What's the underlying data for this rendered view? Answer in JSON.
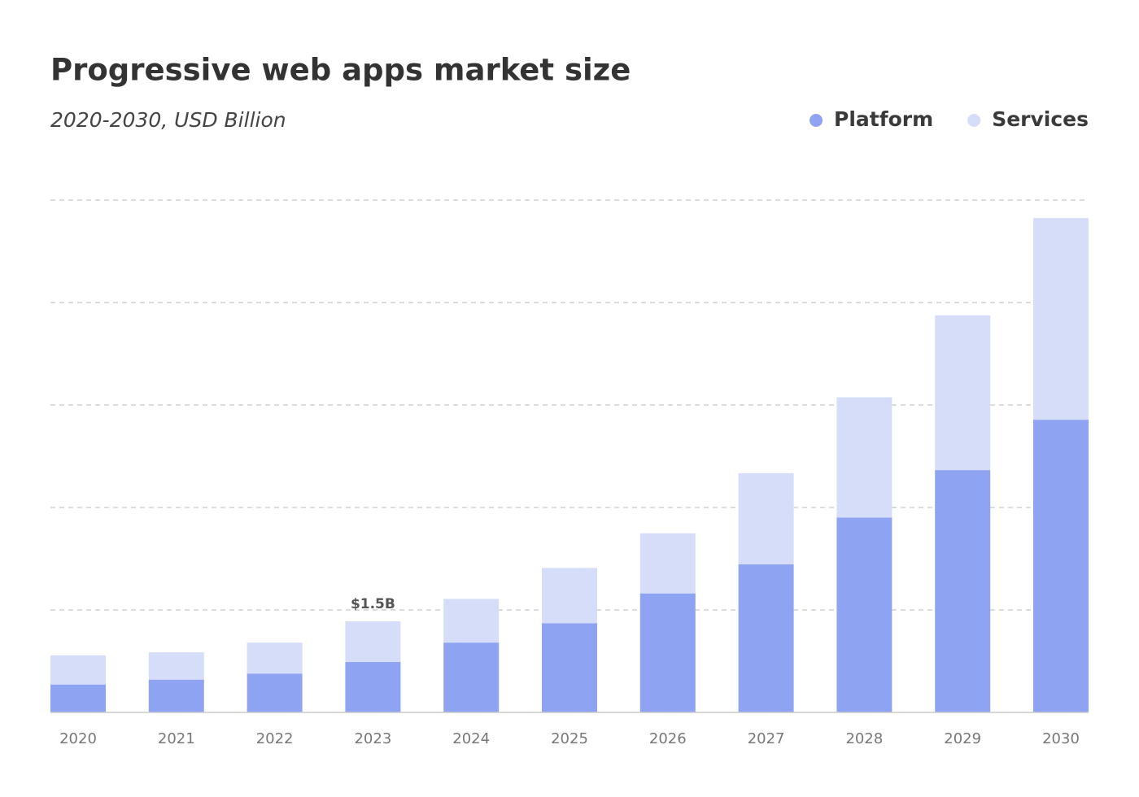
{
  "chart_data": {
    "type": "stacked-bar",
    "title": "Progressive web apps market size",
    "subtitle": "2020-2030, USD Billion",
    "categories": [
      "2020",
      "2021",
      "2022",
      "2023",
      "2024",
      "2025",
      "2026",
      "2027",
      "2028",
      "2029",
      "2030"
    ],
    "series": [
      {
        "name": "Platform",
        "color": "#8ea3f2",
        "values": [
          0.46,
          0.54,
          0.64,
          0.83,
          1.15,
          1.47,
          1.96,
          2.44,
          3.21,
          3.99,
          4.82
        ]
      },
      {
        "name": "Services",
        "color": "#d6ddf9",
        "values": [
          0.48,
          0.45,
          0.51,
          0.67,
          0.72,
          0.91,
          0.99,
          1.5,
          1.98,
          2.55,
          3.32
        ]
      }
    ],
    "annotations": [
      {
        "category": "2023",
        "value": 1.5,
        "label": "$1.5B"
      }
    ],
    "ylim": [
      0,
      8.4375
    ],
    "grid": true,
    "legend": "top-right"
  }
}
